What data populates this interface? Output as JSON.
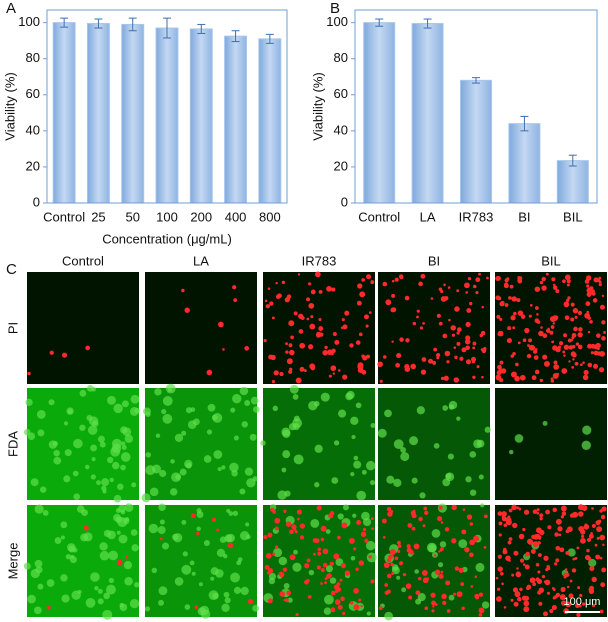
{
  "chart_data": [
    {
      "type": "bar",
      "panel": "A",
      "xlabel": "Concentration (μg/mL)",
      "ylabel": "Viability (%)",
      "categories": [
        "Control",
        "25",
        "50",
        "100",
        "200",
        "400",
        "800"
      ],
      "values": [
        100,
        99.5,
        99,
        97,
        96.5,
        92.5,
        91
      ],
      "errors": [
        2.5,
        2.5,
        3.5,
        5.5,
        2.5,
        3,
        2.5
      ],
      "color": "#a9c6ea",
      "ylim": [
        0,
        107
      ],
      "yticks": [
        0,
        20,
        40,
        60,
        80,
        100
      ]
    },
    {
      "type": "bar",
      "panel": "B",
      "ylabel": "Viability (%)",
      "categories": [
        "Control",
        "LA",
        "IR783",
        "BI",
        "BIL"
      ],
      "values": [
        100,
        99.5,
        68,
        44,
        23.5
      ],
      "errors": [
        2,
        2.5,
        1.5,
        4,
        3
      ],
      "color": "#a9c6ea",
      "ylim": [
        0,
        107
      ],
      "yticks": [
        0,
        20,
        40,
        60,
        80,
        100
      ]
    }
  ],
  "panel_c": {
    "label": "C",
    "columns": [
      "Control",
      "LA",
      "IR783",
      "BI",
      "BIL"
    ],
    "rows": [
      "PI",
      "FDA",
      "Merge"
    ],
    "scale_bar": "100 μm"
  }
}
